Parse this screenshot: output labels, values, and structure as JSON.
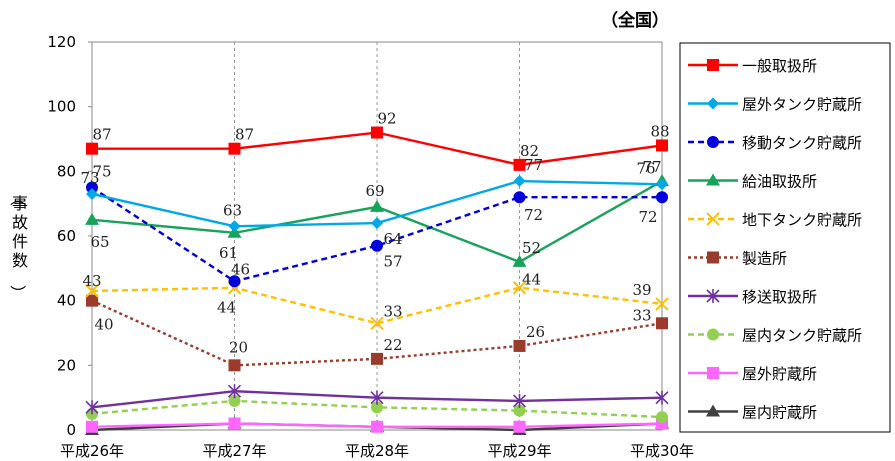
{
  "chart_data": {
    "type": "line",
    "title": "（全国）",
    "ylabel": "（事故件数）",
    "xlabel": "",
    "categories": [
      "平成26年",
      "平成27年",
      "平成28年",
      "平成29年",
      "平成30年"
    ],
    "ylim": [
      0,
      120
    ],
    "yticks": [
      0,
      20,
      40,
      60,
      80,
      100,
      120
    ],
    "grid": "vertical dashed",
    "legend": "right",
    "series": [
      {
        "name": "一般取扱所",
        "values": [
          87,
          87,
          92,
          82,
          88
        ],
        "color": "#ff0000",
        "dash": "solid",
        "marker": "square",
        "labels": [
          "87",
          "87",
          "92",
          "82",
          "88"
        ]
      },
      {
        "name": "屋外タンク貯蔵所",
        "values": [
          73,
          63,
          64,
          77,
          76
        ],
        "color": "#00a8e8",
        "dash": "solid",
        "marker": "diamond",
        "labels": [
          "73",
          "63",
          "64",
          "77",
          "76"
        ]
      },
      {
        "name": "移動タンク貯蔵所",
        "values": [
          75,
          46,
          57,
          72,
          72
        ],
        "color": "#0000dd",
        "dash": "dashed",
        "marker": "circle",
        "labels": [
          "75",
          "46",
          "57",
          "72",
          "72"
        ]
      },
      {
        "name": "給油取扱所",
        "values": [
          65,
          61,
          69,
          52,
          77
        ],
        "color": "#17a35a",
        "dash": "solid",
        "marker": "triangle",
        "labels": [
          "65",
          "61",
          "69",
          "52",
          "77"
        ]
      },
      {
        "name": "地下タンク貯蔵所",
        "values": [
          43,
          44,
          33,
          44,
          39
        ],
        "color": "#ffc000",
        "dash": "dashed",
        "marker": "x",
        "labels": [
          "43",
          "44",
          "33",
          "44",
          "39"
        ]
      },
      {
        "name": "製造所",
        "values": [
          40,
          20,
          22,
          26,
          33
        ],
        "color": "#9b3b2b",
        "dash": "dotted",
        "marker": "square",
        "labels": [
          "40",
          "20",
          "22",
          "26",
          "33"
        ]
      },
      {
        "name": "移送取扱所",
        "values": [
          7,
          12,
          10,
          9,
          10
        ],
        "color": "#7030a0",
        "dash": "solid",
        "marker": "asterisk",
        "labels": []
      },
      {
        "name": "屋内タンク貯蔵所",
        "values": [
          5,
          9,
          7,
          6,
          4
        ],
        "color": "#92d050",
        "dash": "dashed",
        "marker": "circle",
        "labels": []
      },
      {
        "name": "屋外貯蔵所",
        "values": [
          1,
          2,
          1,
          1,
          2
        ],
        "color": "#ff66ff",
        "dash": "solid",
        "marker": "square",
        "labels": []
      },
      {
        "name": "屋内貯蔵所",
        "values": [
          0,
          2,
          1,
          0,
          2
        ],
        "color": "#404040",
        "dash": "solid",
        "marker": "triangle",
        "labels": []
      }
    ]
  }
}
